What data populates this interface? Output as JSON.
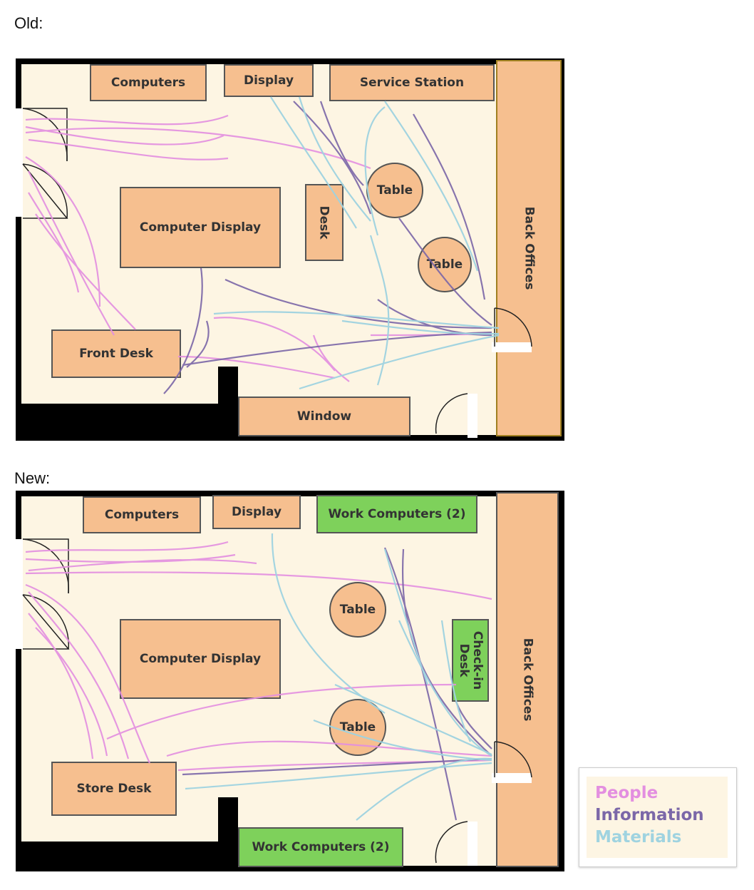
{
  "labels": {
    "old": "Old:",
    "new": "New:"
  },
  "old_plan": {
    "computers": "Computers",
    "display": "Display",
    "service_station": "Service Station",
    "computer_display": "Computer Display",
    "desk": "Desk",
    "table_1": "Table",
    "table_2": "Table",
    "front_desk": "Front Desk",
    "window": "Window",
    "back_offices": "Back Offices"
  },
  "new_plan": {
    "computers": "Computers",
    "display": "Display",
    "work_computers_top": "Work Computers (2)",
    "computer_display": "Computer Display",
    "table_1": "Table",
    "table_2": "Table",
    "check_in_desk": "Check-in\nDesk",
    "store_desk": "Store Desk",
    "work_computers_bottom": "Work Computers (2)",
    "back_offices": "Back Offices"
  },
  "legend": {
    "people": "People",
    "information": "Information",
    "materials": "Materials"
  },
  "colors": {
    "people": "#e38fe0",
    "information": "#7b67a8",
    "materials": "#9fd3e0",
    "furniture": "#f6bf8f",
    "green_furniture": "#7ed15b",
    "floor": "#fdf5e3"
  }
}
